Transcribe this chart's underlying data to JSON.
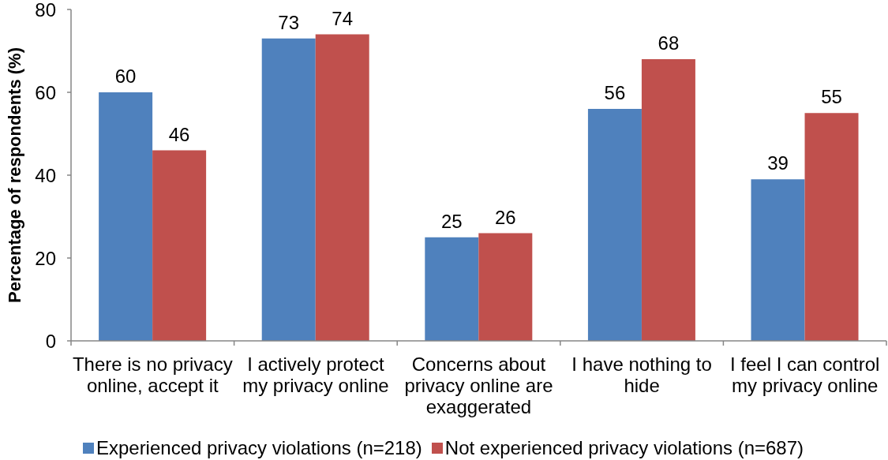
{
  "chart_data": {
    "type": "bar",
    "ylabel": "Percentage of respondents (%)",
    "categories": [
      "There is no privacy online, accept it",
      "I actively protect my privacy online",
      "Concerns about privacy online are exaggerated",
      "I have nothing to hide",
      "I feel I can control my privacy online"
    ],
    "series": [
      {
        "name": "Experienced privacy violations (n=218)",
        "color": "#4f81bd",
        "values": [
          60,
          73,
          25,
          56,
          39
        ]
      },
      {
        "name": "Not experienced privacy violations (n=687)",
        "color": "#c0504d",
        "values": [
          46,
          74,
          26,
          68,
          55
        ]
      }
    ],
    "ylim": [
      0,
      80
    ],
    "yticks": [
      0,
      20,
      40,
      60,
      80
    ],
    "data_labels": true,
    "legend": "bottom"
  }
}
